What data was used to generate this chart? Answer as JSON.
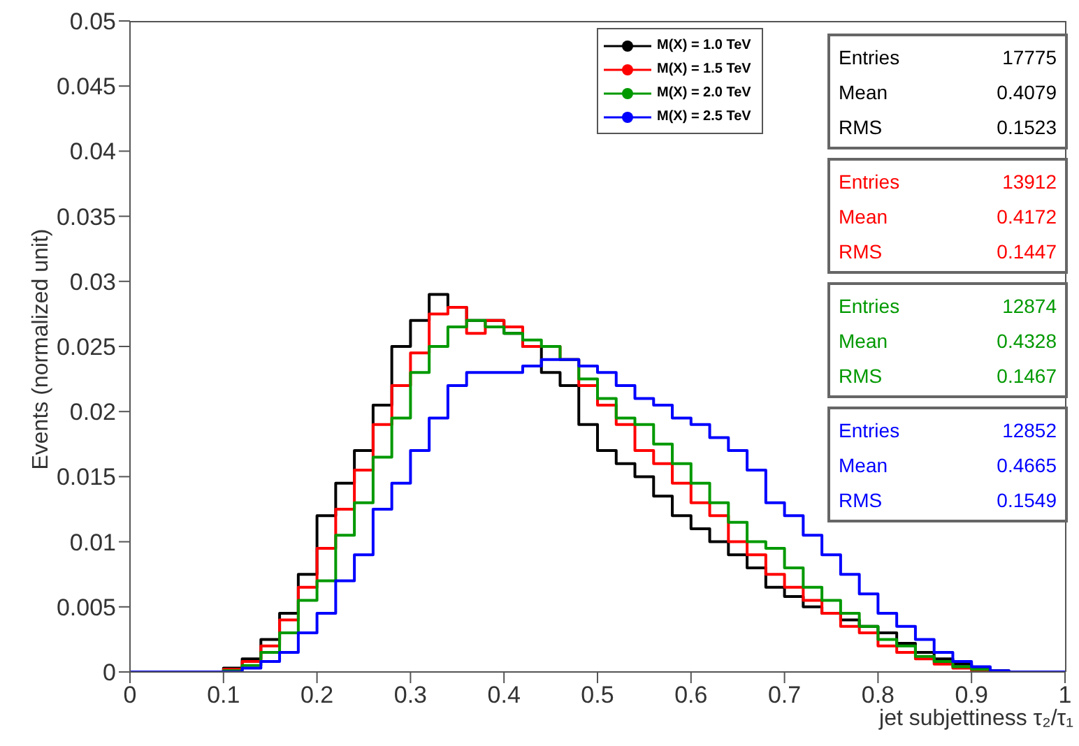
{
  "chart_data": {
    "type": "histogram",
    "xlabel": "jet subjettiness τ₂/τ₁",
    "ylabel": "Events (normalized unit)",
    "bins": [
      0,
      0.02,
      0.04,
      0.06,
      0.08,
      0.1,
      0.12,
      0.14,
      0.16,
      0.18,
      0.2,
      0.22,
      0.24,
      0.26,
      0.28,
      0.3,
      0.32,
      0.34,
      0.36,
      0.38,
      0.4,
      0.42,
      0.44,
      0.46,
      0.48,
      0.5,
      0.52,
      0.54,
      0.56,
      0.58,
      0.6,
      0.62,
      0.64,
      0.66,
      0.68,
      0.7,
      0.72,
      0.74,
      0.76,
      0.78,
      0.8,
      0.82,
      0.84,
      0.86,
      0.88,
      0.9,
      0.92,
      0.94,
      0.96,
      0.98,
      1
    ],
    "series": [
      {
        "name": "M(X) = 1.0 TeV",
        "color": "#000000",
        "values": [
          0,
          0,
          0,
          0,
          0,
          0.0003,
          0.001,
          0.0025,
          0.0045,
          0.0075,
          0.012,
          0.0145,
          0.017,
          0.0205,
          0.025,
          0.027,
          0.029,
          0.028,
          0.027,
          0.027,
          0.026,
          0.025,
          0.023,
          0.022,
          0.019,
          0.017,
          0.016,
          0.015,
          0.0135,
          0.012,
          0.011,
          0.01,
          0.009,
          0.008,
          0.0065,
          0.0058,
          0.005,
          0.0045,
          0.004,
          0.0035,
          0.003,
          0.0022,
          0.0015,
          0.001,
          0.0006,
          0.0003,
          0.0001,
          0,
          0,
          0
        ]
      },
      {
        "name": "M(X) = 1.5 TeV",
        "color": "#ff0000",
        "values": [
          0,
          0,
          0,
          0,
          0,
          0.0002,
          0.0008,
          0.002,
          0.004,
          0.0065,
          0.0095,
          0.0125,
          0.0155,
          0.019,
          0.022,
          0.0245,
          0.0275,
          0.028,
          0.026,
          0.027,
          0.0265,
          0.025,
          0.025,
          0.024,
          0.022,
          0.0205,
          0.019,
          0.017,
          0.016,
          0.0145,
          0.013,
          0.012,
          0.01,
          0.009,
          0.0075,
          0.0065,
          0.0055,
          0.0045,
          0.0035,
          0.003,
          0.002,
          0.0015,
          0.001,
          0.0006,
          0.0003,
          0.0001,
          0,
          0,
          0,
          0
        ]
      },
      {
        "name": "M(X) = 2.0 TeV",
        "color": "#009900",
        "values": [
          0,
          0,
          0,
          0,
          0,
          0.0001,
          0.0005,
          0.0015,
          0.003,
          0.0055,
          0.007,
          0.0105,
          0.013,
          0.0165,
          0.0195,
          0.023,
          0.025,
          0.0265,
          0.027,
          0.0265,
          0.026,
          0.0255,
          0.025,
          0.024,
          0.0225,
          0.021,
          0.0195,
          0.019,
          0.0175,
          0.016,
          0.0145,
          0.013,
          0.0115,
          0.01,
          0.0095,
          0.008,
          0.0065,
          0.0055,
          0.0045,
          0.0035,
          0.0025,
          0.002,
          0.0012,
          0.0008,
          0.0004,
          0.0002,
          0,
          0,
          0,
          0
        ]
      },
      {
        "name": "M(X) = 2.5 TeV",
        "color": "#0000ff",
        "values": [
          0,
          0,
          0,
          0,
          0,
          0,
          0.0003,
          0.0008,
          0.0015,
          0.003,
          0.0045,
          0.007,
          0.009,
          0.0125,
          0.0145,
          0.017,
          0.0195,
          0.022,
          0.023,
          0.023,
          0.023,
          0.0235,
          0.024,
          0.024,
          0.0235,
          0.023,
          0.022,
          0.021,
          0.0205,
          0.0195,
          0.019,
          0.018,
          0.017,
          0.0155,
          0.013,
          0.012,
          0.0105,
          0.009,
          0.0075,
          0.006,
          0.0045,
          0.0035,
          0.0025,
          0.0015,
          0.0008,
          0.0004,
          0.0001,
          0,
          0,
          0
        ]
      }
    ],
    "xlim": [
      0,
      1
    ],
    "xticks": [
      0,
      0.1,
      0.2,
      0.3,
      0.4,
      0.5,
      0.6,
      0.7,
      0.8,
      0.9,
      1
    ],
    "ylim": [
      0,
      0.05
    ],
    "yticks": [
      0,
      0.005,
      0.01,
      0.015,
      0.02,
      0.025,
      0.03,
      0.035,
      0.04,
      0.045,
      0.05
    ],
    "legend": "top right",
    "grid": false,
    "marker": "none",
    "annotations": [
      "Entries 17775",
      "Mean 0.4079",
      "RMS 0.1523",
      "Entries 13912",
      "Mean 0.4172",
      "RMS 0.1447",
      "Entries 12874",
      "Mean 0.4328",
      "RMS 0.1467",
      "Entries 12852",
      "Mean 0.4665",
      "RMS 0.1549"
    ]
  }
}
